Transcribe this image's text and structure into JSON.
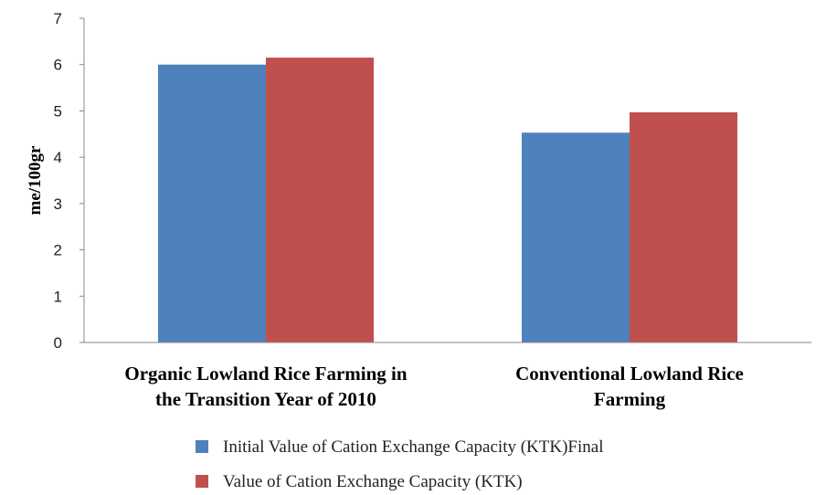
{
  "chart_data": {
    "type": "bar",
    "title": "",
    "ylabel": "me/100gr",
    "xlabel": "",
    "ylim": [
      0,
      7
    ],
    "yticks": [
      0,
      1,
      2,
      3,
      4,
      5,
      6,
      7
    ],
    "grid": false,
    "legend_position": "bottom",
    "categories": [
      [
        "Organic Lowland Rice Farming in",
        "the Transition Year of 2010"
      ],
      [
        "Conventional Lowland Rice",
        "Farming"
      ]
    ],
    "series": [
      {
        "name": "Initial Value of Cation Exchange Capacity (KTK)Final",
        "color": "#4F81BD",
        "values": [
          6.0,
          4.53
        ]
      },
      {
        "name": "Value of Cation Exchange Capacity (KTK)",
        "color": "#C0504D",
        "values": [
          6.15,
          4.97
        ]
      }
    ]
  }
}
